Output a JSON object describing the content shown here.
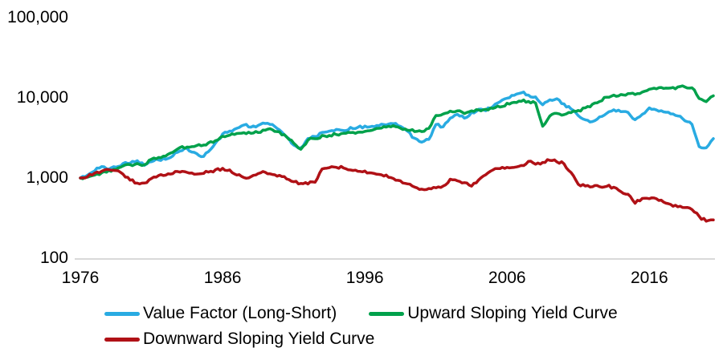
{
  "chart_data": {
    "type": "line",
    "title": "",
    "xlabel": "",
    "ylabel": "",
    "y_scale": "log",
    "ylim": [
      100,
      100000
    ],
    "xlim": [
      1976,
      2020.5
    ],
    "grid": "none",
    "axis_line_color": "#D9D9D9",
    "text_color": "#000000",
    "legend_position": "bottom-left two rows",
    "y_ticks": [
      100000,
      10000,
      1000,
      100
    ],
    "y_tick_labels": [
      "100,000",
      "10,000",
      "1,000",
      "100"
    ],
    "x_ticks": [
      1976,
      1986,
      1996,
      2006,
      2016
    ],
    "x_tick_labels": [
      "1976",
      "1986",
      "1996",
      "2006",
      "2016"
    ],
    "x": [
      1976,
      1976.5,
      1977,
      1977.5,
      1978,
      1978.5,
      1979,
      1979.5,
      1980,
      1980.5,
      1981,
      1981.5,
      1982,
      1982.5,
      1983,
      1983.5,
      1984,
      1984.5,
      1985,
      1985.5,
      1986,
      1986.5,
      1987,
      1987.5,
      1988,
      1988.5,
      1989,
      1989.5,
      1990,
      1990.5,
      1991,
      1991.5,
      1992,
      1992.5,
      1993,
      1993.5,
      1994,
      1994.5,
      1995,
      1995.5,
      1996,
      1996.5,
      1997,
      1997.5,
      1998,
      1998.5,
      1999,
      1999.5,
      2000,
      2000.5,
      2001,
      2001.5,
      2002,
      2002.5,
      2003,
      2003.5,
      2004,
      2004.5,
      2005,
      2005.5,
      2006,
      2006.5,
      2007,
      2007.5,
      2008,
      2008.5,
      2009,
      2009.5,
      2010,
      2010.5,
      2011,
      2011.5,
      2012,
      2012.5,
      2013,
      2013.5,
      2014,
      2014.5,
      2015,
      2015.5,
      2016,
      2016.5,
      2017,
      2017.5,
      2018,
      2018.5,
      2019,
      2019.5,
      2020,
      2020.5
    ],
    "series": [
      {
        "name": "Value Factor (Long-Short)",
        "color": "#29ABE2",
        "values": [
          1000,
          1090,
          1230,
          1400,
          1310,
          1380,
          1490,
          1550,
          1650,
          1450,
          1620,
          1700,
          1740,
          1900,
          2200,
          2320,
          2100,
          1820,
          2120,
          2700,
          3500,
          3900,
          4150,
          4600,
          4300,
          4500,
          4800,
          4700,
          3950,
          3300,
          2600,
          2350,
          3100,
          3250,
          3700,
          3900,
          4050,
          3950,
          4200,
          4300,
          4400,
          4350,
          4500,
          4650,
          4750,
          4400,
          3800,
          3100,
          2750,
          3050,
          4700,
          4350,
          5500,
          6300,
          5600,
          6500,
          7100,
          7000,
          7900,
          9000,
          9800,
          10900,
          11700,
          10800,
          10200,
          8300,
          9500,
          9700,
          8300,
          7200,
          5900,
          5250,
          5100,
          5750,
          6500,
          7000,
          6800,
          6500,
          5250,
          6200,
          7600,
          7100,
          6600,
          6300,
          5900,
          5250,
          4700,
          2450,
          2350,
          3100
        ]
      },
      {
        "name": "Upward Sloping Yield Curve",
        "color": "#00A14B",
        "values": [
          1000,
          1030,
          1100,
          1150,
          1230,
          1300,
          1400,
          1450,
          1500,
          1440,
          1700,
          1800,
          1900,
          2100,
          2400,
          2450,
          2500,
          2560,
          2700,
          2950,
          3300,
          3450,
          3600,
          3700,
          3650,
          3750,
          3950,
          4000,
          3700,
          3300,
          2700,
          2250,
          3000,
          3100,
          3350,
          3400,
          3500,
          3550,
          3650,
          3700,
          3850,
          3950,
          4100,
          4300,
          4450,
          4200,
          3950,
          3850,
          3800,
          4100,
          6000,
          6400,
          6700,
          7000,
          6400,
          6800,
          7000,
          7100,
          7500,
          7800,
          8400,
          8700,
          9100,
          9000,
          8500,
          4400,
          6000,
          6300,
          6200,
          6600,
          6900,
          7400,
          8300,
          9100,
          10200,
          10700,
          11000,
          11200,
          11000,
          11600,
          12900,
          13000,
          13200,
          13100,
          13500,
          13800,
          13400,
          9800,
          9000,
          10600
        ]
      },
      {
        "name": "Downward Sloping Yield Curve",
        "color": "#B01116",
        "values": [
          1000,
          1050,
          1150,
          1200,
          1260,
          1230,
          1100,
          950,
          870,
          850,
          1000,
          1060,
          1100,
          1150,
          1200,
          1180,
          1120,
          1140,
          1200,
          1250,
          1300,
          1250,
          1100,
          1000,
          1050,
          1150,
          1170,
          1120,
          1070,
          980,
          890,
          860,
          850,
          900,
          1300,
          1350,
          1380,
          1330,
          1260,
          1230,
          1200,
          1170,
          1120,
          1080,
          980,
          920,
          850,
          780,
          725,
          740,
          760,
          780,
          950,
          920,
          890,
          790,
          950,
          1100,
          1260,
          1300,
          1350,
          1340,
          1410,
          1600,
          1500,
          1550,
          1680,
          1600,
          1510,
          1150,
          830,
          795,
          780,
          790,
          800,
          760,
          680,
          630,
          490,
          560,
          555,
          545,
          510,
          465,
          440,
          420,
          410,
          330,
          290,
          300
        ]
      }
    ]
  }
}
